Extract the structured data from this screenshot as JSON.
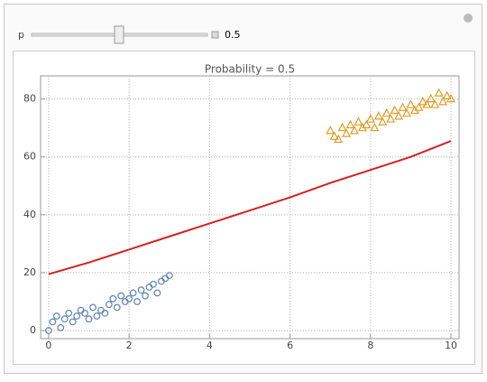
{
  "controls": {
    "label": "p",
    "value": 0.5
  },
  "chart_data": {
    "type": "scatter",
    "title": "Probability = 0.5",
    "xlim": [
      -0.2,
      10.2
    ],
    "ylim": [
      -2.8,
      88
    ],
    "xticks": [
      0,
      2,
      4,
      6,
      8,
      10
    ],
    "yticks": [
      0,
      20,
      40,
      60,
      80
    ],
    "grid": true,
    "series": [
      {
        "marker": "circle",
        "color": "#5e81b5",
        "x": [
          0,
          0.1,
          0.2,
          0.3,
          0.4,
          0.5,
          0.6,
          0.7,
          0.8,
          0.9,
          1.0,
          1.1,
          1.2,
          1.3,
          1.4,
          1.5,
          1.6,
          1.7,
          1.8,
          1.9,
          2.0,
          2.1,
          2.2,
          2.3,
          2.4,
          2.5,
          2.6,
          2.7,
          2.8,
          2.9,
          3.0
        ],
        "values": [
          0,
          3,
          5,
          1,
          4,
          6,
          3,
          5,
          7,
          6,
          4,
          8,
          5,
          7,
          6,
          9,
          11,
          8,
          12,
          10,
          11,
          13,
          10,
          14,
          12,
          15,
          16,
          13,
          17,
          18,
          19
        ]
      },
      {
        "marker": "triangle",
        "color": "#e19c24",
        "x": [
          7.0,
          7.1,
          7.2,
          7.3,
          7.4,
          7.5,
          7.6,
          7.7,
          7.8,
          7.9,
          8.0,
          8.1,
          8.2,
          8.3,
          8.4,
          8.5,
          8.6,
          8.7,
          8.8,
          8.9,
          9.0,
          9.1,
          9.2,
          9.3,
          9.4,
          9.5,
          9.6,
          9.7,
          9.8,
          9.9,
          10.0
        ],
        "values": [
          69,
          67,
          66,
          70,
          68,
          71,
          69,
          72,
          70,
          71,
          73,
          70,
          74,
          72,
          75,
          73,
          76,
          74,
          77,
          75,
          78,
          76,
          77,
          79,
          78,
          80,
          78,
          82,
          79,
          81,
          80
        ]
      },
      {
        "marker": "line",
        "color": "#d62020",
        "x": [
          0,
          1,
          2,
          3,
          4,
          5,
          6,
          7,
          8,
          9,
          10
        ],
        "values": [
          19.5,
          23.5,
          28,
          32.5,
          37,
          41.5,
          46,
          51,
          55.5,
          60,
          65.5
        ]
      }
    ]
  }
}
